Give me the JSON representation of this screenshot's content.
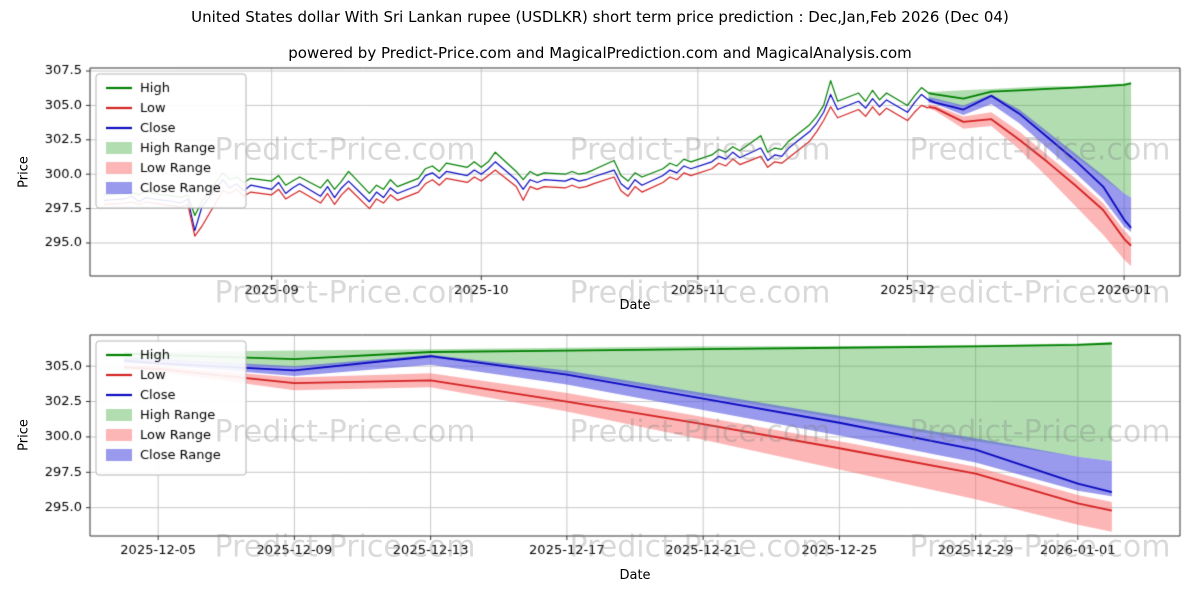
{
  "page": {
    "title": "United States dollar With Sri Lankan rupee (USDLKR) short term price prediction : Dec,Jan,Feb 2026 (Dec 04)",
    "subtitle": "powered by Predict-Price.com and MagicalPrediction.com and MagicalAnalysis.com",
    "watermark": "Predict-Price.com"
  },
  "chart_data": {
    "type": "line",
    "colors": {
      "high": "#008000",
      "low": "#d42222",
      "close": "#0a0ac0",
      "high_range": "rgba(60,170,60,0.40)",
      "low_range": "rgba(250,110,110,0.50)",
      "close_range": "rgba(85,85,225,0.60)",
      "grid": "#c8c8c8",
      "watermark": "rgba(128,128,128,0.30)"
    },
    "legend": [
      {
        "label": "High",
        "swatch": "line",
        "color_key": "high"
      },
      {
        "label": "Low",
        "swatch": "line",
        "color_key": "low"
      },
      {
        "label": "Close",
        "swatch": "line",
        "color_key": "close"
      },
      {
        "label": "High Range",
        "swatch": "band",
        "color_key": "high_range"
      },
      {
        "label": "Low Range",
        "swatch": "band",
        "color_key": "low_range"
      },
      {
        "label": "Close Range",
        "swatch": "band",
        "color_key": "close_range"
      }
    ],
    "history": {
      "columns": [
        "date",
        "high",
        "low",
        "close"
      ],
      "rows": [
        [
          "2025-08-08",
          298.5,
          297.8,
          298.1
        ],
        [
          "2025-08-11",
          298.6,
          297.9,
          298.2
        ],
        [
          "2025-08-12",
          298.7,
          298.0,
          298.4
        ],
        [
          "2025-08-13",
          298.5,
          297.8,
          298.0
        ],
        [
          "2025-08-14",
          298.8,
          298.0,
          298.3
        ],
        [
          "2025-08-15",
          298.6,
          297.9,
          298.2
        ],
        [
          "2025-08-18",
          298.4,
          297.7,
          298.0
        ],
        [
          "2025-08-19",
          298.3,
          297.6,
          297.9
        ],
        [
          "2025-08-20",
          298.5,
          297.8,
          298.2
        ],
        [
          "2025-08-21",
          297.0,
          295.5,
          295.9
        ],
        [
          "2025-08-22",
          298.0,
          296.2,
          297.6
        ],
        [
          "2025-08-25",
          300.1,
          298.8,
          299.6
        ],
        [
          "2025-08-26",
          299.6,
          298.6,
          299.0
        ],
        [
          "2025-08-27",
          299.8,
          298.9,
          299.3
        ],
        [
          "2025-08-28",
          299.4,
          298.4,
          298.8
        ],
        [
          "2025-08-29",
          299.7,
          298.7,
          299.2
        ],
        [
          "2025-09-01",
          299.5,
          298.5,
          298.9
        ],
        [
          "2025-09-02",
          299.9,
          298.9,
          299.4
        ],
        [
          "2025-09-03",
          299.2,
          298.2,
          298.6
        ],
        [
          "2025-09-04",
          299.5,
          298.5,
          299.0
        ],
        [
          "2025-09-05",
          299.8,
          298.8,
          299.3
        ],
        [
          "2025-09-08",
          299.0,
          297.9,
          298.4
        ],
        [
          "2025-09-09",
          299.6,
          298.6,
          299.1
        ],
        [
          "2025-09-10",
          298.9,
          297.8,
          298.3
        ],
        [
          "2025-09-11",
          299.5,
          298.5,
          299.0
        ],
        [
          "2025-09-12",
          300.2,
          299.0,
          299.5
        ],
        [
          "2025-09-15",
          298.6,
          297.5,
          298.0
        ],
        [
          "2025-09-16",
          299.2,
          298.2,
          298.7
        ],
        [
          "2025-09-17",
          298.9,
          297.9,
          298.3
        ],
        [
          "2025-09-18",
          299.6,
          298.5,
          299.0
        ],
        [
          "2025-09-19",
          299.1,
          298.1,
          298.6
        ],
        [
          "2025-09-22",
          299.7,
          298.7,
          299.2
        ],
        [
          "2025-09-23",
          300.4,
          299.3,
          299.9
        ],
        [
          "2025-09-24",
          300.6,
          299.6,
          300.1
        ],
        [
          "2025-09-25",
          300.2,
          299.2,
          299.7
        ],
        [
          "2025-09-26",
          300.8,
          299.7,
          300.2
        ],
        [
          "2025-09-29",
          300.5,
          299.4,
          299.9
        ],
        [
          "2025-09-30",
          300.9,
          299.8,
          300.3
        ],
        [
          "2025-10-01",
          300.5,
          299.5,
          300.0
        ],
        [
          "2025-10-02",
          300.9,
          299.9,
          300.4
        ],
        [
          "2025-10-03",
          301.6,
          300.3,
          300.9
        ],
        [
          "2025-10-06",
          300.2,
          299.1,
          299.6
        ],
        [
          "2025-10-07",
          299.6,
          298.1,
          298.9
        ],
        [
          "2025-10-08",
          300.2,
          299.1,
          299.6
        ],
        [
          "2025-10-09",
          299.9,
          298.9,
          299.4
        ],
        [
          "2025-10-10",
          300.1,
          299.1,
          299.6
        ],
        [
          "2025-10-13",
          300.0,
          299.0,
          299.5
        ],
        [
          "2025-10-14",
          300.2,
          299.2,
          299.7
        ],
        [
          "2025-10-15",
          300.0,
          299.0,
          299.5
        ],
        [
          "2025-10-16",
          300.1,
          299.1,
          299.6
        ],
        [
          "2025-10-17",
          300.3,
          299.3,
          299.8
        ],
        [
          "2025-10-20",
          301.0,
          299.8,
          300.3
        ],
        [
          "2025-10-21",
          299.9,
          298.8,
          299.3
        ],
        [
          "2025-10-22",
          299.5,
          298.4,
          298.9
        ],
        [
          "2025-10-23",
          300.1,
          299.1,
          299.6
        ],
        [
          "2025-10-24",
          299.8,
          298.7,
          299.2
        ],
        [
          "2025-10-27",
          300.4,
          299.4,
          299.9
        ],
        [
          "2025-10-28",
          300.8,
          299.8,
          300.3
        ],
        [
          "2025-10-29",
          300.6,
          299.6,
          300.1
        ],
        [
          "2025-10-30",
          301.1,
          300.1,
          300.6
        ],
        [
          "2025-10-31",
          300.9,
          299.9,
          300.4
        ],
        [
          "2025-11-03",
          301.4,
          300.4,
          300.9
        ],
        [
          "2025-11-04",
          301.8,
          300.8,
          301.3
        ],
        [
          "2025-11-05",
          301.6,
          300.6,
          301.1
        ],
        [
          "2025-11-06",
          302.0,
          301.1,
          301.6
        ],
        [
          "2025-11-07",
          301.7,
          300.7,
          301.2
        ],
        [
          "2025-11-10",
          302.8,
          301.3,
          301.9
        ],
        [
          "2025-11-11",
          301.6,
          300.5,
          301.0
        ],
        [
          "2025-11-12",
          301.9,
          300.9,
          301.4
        ],
        [
          "2025-11-13",
          301.8,
          300.8,
          301.3
        ],
        [
          "2025-11-14",
          302.4,
          301.2,
          301.9
        ],
        [
          "2025-11-17",
          303.6,
          302.4,
          303.1
        ],
        [
          "2025-11-18",
          304.2,
          303.1,
          303.7
        ],
        [
          "2025-11-19",
          305.0,
          303.9,
          304.5
        ],
        [
          "2025-11-20",
          306.8,
          304.9,
          305.8
        ],
        [
          "2025-11-21",
          305.3,
          304.1,
          304.7
        ],
        [
          "2025-11-24",
          305.9,
          304.7,
          305.3
        ],
        [
          "2025-11-25",
          305.3,
          304.2,
          304.8
        ],
        [
          "2025-11-26",
          306.1,
          304.9,
          305.5
        ],
        [
          "2025-11-27",
          305.4,
          304.3,
          304.9
        ],
        [
          "2025-11-28",
          305.9,
          304.8,
          305.4
        ],
        [
          "2025-12-01",
          305.0,
          303.9,
          304.5
        ],
        [
          "2025-12-02",
          305.7,
          304.5,
          305.2
        ],
        [
          "2025-12-03",
          306.3,
          305.0,
          305.8
        ],
        [
          "2025-12-04",
          305.9,
          304.8,
          305.4
        ]
      ]
    },
    "forecast": {
      "dates": [
        "2025-12-04",
        "2025-12-05",
        "2025-12-09",
        "2025-12-13",
        "2025-12-17",
        "2025-12-21",
        "2025-12-25",
        "2025-12-29",
        "2026-01-01",
        "2026-01-02"
      ],
      "high": [
        305.9,
        305.8,
        305.5,
        306.0,
        306.1,
        306.2,
        306.3,
        306.4,
        306.5,
        306.6
      ],
      "low": [
        304.9,
        304.8,
        303.8,
        304.0,
        302.5,
        300.9,
        299.2,
        297.4,
        295.3,
        294.8
      ],
      "close": [
        305.4,
        305.2,
        304.7,
        305.7,
        304.4,
        302.7,
        301.0,
        299.1,
        296.7,
        296.1
      ],
      "high_band_top": [
        306.0,
        306.0,
        306.1,
        306.2,
        306.3,
        306.4,
        306.4,
        306.5,
        306.6,
        306.7
      ],
      "high_band_bottom": [
        305.5,
        305.4,
        304.9,
        305.6,
        304.5,
        302.9,
        301.3,
        299.7,
        298.6,
        298.3
      ],
      "close_band_top": [
        305.6,
        305.5,
        305.0,
        305.8,
        304.7,
        303.1,
        301.5,
        299.9,
        298.6,
        298.3
      ],
      "close_band_bottom": [
        305.2,
        305.1,
        304.3,
        305.1,
        303.7,
        301.9,
        300.1,
        298.2,
        296.2,
        295.8
      ],
      "low_band_top": [
        305.1,
        305.0,
        304.2,
        304.5,
        303.1,
        301.4,
        299.7,
        297.9,
        295.9,
        295.4
      ],
      "low_band_bottom": [
        304.8,
        304.6,
        303.3,
        303.5,
        301.8,
        299.8,
        297.7,
        295.6,
        293.8,
        293.3
      ]
    },
    "panels": [
      {
        "xlabel": "Date",
        "ylabel": "Price",
        "show_history": true,
        "x_range": [
          "2025-08-06",
          "2026-01-09"
        ],
        "y_range": [
          292.6,
          307.72
        ],
        "y_ticks": [
          295.0,
          297.5,
          300.0,
          302.5,
          305.0,
          307.5
        ],
        "x_ticks": [
          {
            "at": "2025-09-01",
            "label": "2025-09"
          },
          {
            "at": "2025-10-01",
            "label": "2025-10"
          },
          {
            "at": "2025-11-01",
            "label": "2025-11"
          },
          {
            "at": "2025-12-01",
            "label": "2025-12"
          },
          {
            "at": "2026-01-01",
            "label": "2026-01"
          }
        ]
      },
      {
        "xlabel": "Date",
        "ylabel": "Price",
        "show_history": false,
        "x_range": [
          "2025-12-03",
          "2026-01-04"
        ],
        "y_range": [
          293.0,
          307.2
        ],
        "y_ticks": [
          295.0,
          297.5,
          300.0,
          302.5,
          305.0
        ],
        "x_ticks": [
          {
            "at": "2025-12-05",
            "label": "2025-12-05"
          },
          {
            "at": "2025-12-09",
            "label": "2025-12-09"
          },
          {
            "at": "2025-12-13",
            "label": "2025-12-13"
          },
          {
            "at": "2025-12-17",
            "label": "2025-12-17"
          },
          {
            "at": "2025-12-21",
            "label": "2025-12-21"
          },
          {
            "at": "2025-12-25",
            "label": "2025-12-25"
          },
          {
            "at": "2025-12-29",
            "label": "2025-12-29"
          },
          {
            "at": "2026-01-01",
            "label": "2026-01-01"
          }
        ]
      }
    ]
  }
}
